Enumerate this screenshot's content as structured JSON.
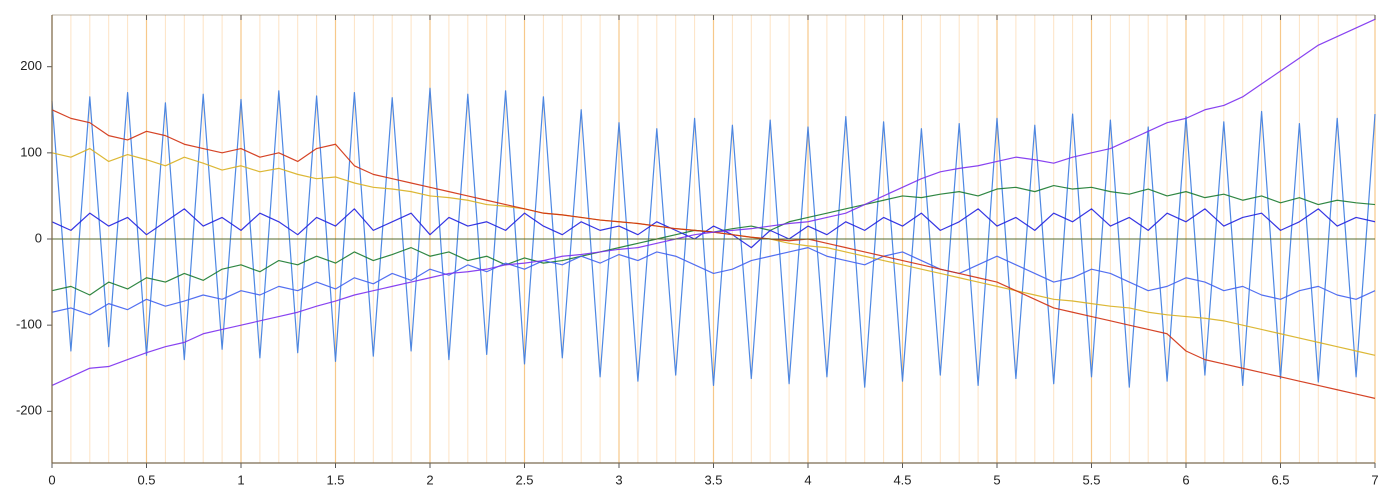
{
  "chart_data": {
    "type": "line",
    "x": [
      0,
      0.1,
      0.2,
      0.3,
      0.4,
      0.5,
      0.6,
      0.7,
      0.8,
      0.9,
      1,
      1.1,
      1.2,
      1.3,
      1.4,
      1.5,
      1.6,
      1.7,
      1.8,
      1.9,
      2,
      2.1,
      2.2,
      2.3,
      2.4,
      2.5,
      2.6,
      2.7,
      2.8,
      2.9,
      3,
      3.1,
      3.2,
      3.3,
      3.4,
      3.5,
      3.6,
      3.7,
      3.8,
      3.9,
      4,
      4.1,
      4.2,
      4.3,
      4.4,
      4.5,
      4.6,
      4.7,
      4.8,
      4.9,
      5,
      5.1,
      5.2,
      5.3,
      5.4,
      5.5,
      5.6,
      5.7,
      5.8,
      5.9,
      6,
      6.1,
      6.2,
      6.3,
      6.4,
      6.5,
      6.6,
      6.7,
      6.8,
      6.9,
      7
    ],
    "series": [
      {
        "color": "#3b7be0",
        "values": [
          160,
          -130,
          165,
          -125,
          170,
          -135,
          158,
          -140,
          168,
          -128,
          162,
          -138,
          172,
          -132,
          166,
          -142,
          170,
          -136,
          164,
          -130,
          175,
          -140,
          168,
          -134,
          172,
          -145,
          165,
          -138,
          150,
          -160,
          135,
          -165,
          128,
          -158,
          140,
          -170,
          132,
          -162,
          138,
          -168,
          130,
          -160,
          142,
          -172,
          136,
          -165,
          128,
          -158,
          134,
          -170,
          140,
          -162,
          132,
          -168,
          145,
          -160,
          138,
          -172,
          130,
          -165,
          142,
          -158,
          136,
          -170,
          148,
          -162,
          134,
          -166,
          140,
          -160,
          145
        ]
      },
      {
        "color": "#d8b020",
        "values": [
          100,
          95,
          105,
          90,
          98,
          92,
          85,
          95,
          88,
          80,
          85,
          78,
          82,
          75,
          70,
          72,
          65,
          60,
          58,
          55,
          50,
          48,
          45,
          40,
          38,
          35,
          30,
          28,
          25,
          22,
          20,
          18,
          15,
          12,
          10,
          8,
          5,
          2,
          0,
          -5,
          -8,
          -10,
          -15,
          -20,
          -25,
          -30,
          -35,
          -40,
          -45,
          -50,
          -55,
          -60,
          -65,
          -70,
          -72,
          -75,
          -78,
          -80,
          -85,
          -88,
          -90,
          -92,
          -95,
          -100,
          -105,
          -110,
          -115,
          -120,
          -125,
          -130,
          -135
        ]
      },
      {
        "color": "#1a7a30",
        "values": [
          -60,
          -55,
          -65,
          -50,
          -58,
          -45,
          -50,
          -40,
          -48,
          -35,
          -30,
          -38,
          -25,
          -30,
          -20,
          -28,
          -15,
          -25,
          -18,
          -10,
          -20,
          -15,
          -25,
          -20,
          -30,
          -22,
          -28,
          -25,
          -20,
          -15,
          -10,
          -5,
          0,
          5,
          10,
          8,
          12,
          15,
          10,
          20,
          25,
          30,
          35,
          40,
          45,
          50,
          48,
          52,
          55,
          50,
          58,
          60,
          55,
          62,
          58,
          60,
          55,
          52,
          58,
          50,
          55,
          48,
          52,
          45,
          50,
          42,
          48,
          40,
          45,
          42,
          40
        ]
      },
      {
        "color": "#4060f0",
        "values": [
          -85,
          -80,
          -88,
          -75,
          -82,
          -70,
          -78,
          -72,
          -65,
          -70,
          -60,
          -65,
          -55,
          -60,
          -50,
          -58,
          -45,
          -52,
          -40,
          -48,
          -35,
          -42,
          -30,
          -38,
          -28,
          -35,
          -25,
          -30,
          -20,
          -28,
          -18,
          -25,
          -15,
          -20,
          -30,
          -40,
          -35,
          -25,
          -20,
          -15,
          -10,
          -20,
          -25,
          -30,
          -20,
          -15,
          -25,
          -35,
          -40,
          -30,
          -20,
          -30,
          -40,
          -50,
          -45,
          -35,
          -40,
          -50,
          -60,
          -55,
          -45,
          -50,
          -60,
          -55,
          -65,
          -70,
          -60,
          -55,
          -65,
          -70,
          -60
        ]
      },
      {
        "color": "#2020e0",
        "values": [
          20,
          10,
          30,
          15,
          25,
          5,
          20,
          35,
          15,
          25,
          10,
          30,
          20,
          5,
          25,
          15,
          35,
          10,
          20,
          30,
          5,
          25,
          15,
          20,
          10,
          30,
          15,
          5,
          20,
          10,
          15,
          5,
          20,
          10,
          0,
          15,
          5,
          -10,
          10,
          0,
          15,
          5,
          20,
          10,
          25,
          15,
          30,
          10,
          20,
          35,
          15,
          25,
          10,
          30,
          20,
          35,
          15,
          25,
          10,
          30,
          20,
          35,
          15,
          25,
          30,
          10,
          20,
          35,
          15,
          25,
          20
        ]
      },
      {
        "color": "#d03010",
        "values": [
          150,
          140,
          135,
          120,
          115,
          125,
          120,
          110,
          105,
          100,
          105,
          95,
          100,
          90,
          105,
          110,
          85,
          75,
          70,
          65,
          60,
          55,
          50,
          45,
          40,
          35,
          30,
          28,
          25,
          22,
          20,
          18,
          15,
          12,
          10,
          8,
          5,
          2,
          0,
          -2,
          0,
          -5,
          -10,
          -15,
          -20,
          -25,
          -30,
          -35,
          -40,
          -45,
          -50,
          -60,
          -70,
          -80,
          -85,
          -90,
          -95,
          -100,
          -105,
          -110,
          -130,
          -140,
          -145,
          -150,
          -155,
          -160,
          -165,
          -170,
          -175,
          -180,
          -185
        ]
      },
      {
        "color": "#7b2ff0",
        "values": [
          -170,
          -160,
          -150,
          -148,
          -140,
          -132,
          -125,
          -120,
          -110,
          -105,
          -100,
          -95,
          -90,
          -85,
          -78,
          -72,
          -65,
          -60,
          -55,
          -50,
          -45,
          -40,
          -38,
          -35,
          -30,
          -28,
          -25,
          -20,
          -18,
          -15,
          -12,
          -10,
          -5,
          0,
          5,
          8,
          10,
          12,
          15,
          18,
          20,
          25,
          30,
          40,
          50,
          60,
          70,
          78,
          82,
          85,
          90,
          95,
          92,
          88,
          95,
          100,
          105,
          115,
          125,
          135,
          140,
          150,
          155,
          165,
          180,
          195,
          210,
          225,
          235,
          245,
          255
        ]
      }
    ],
    "xlim": [
      0,
      7
    ],
    "xticks": [
      0,
      0.5,
      1,
      1.5,
      2,
      2.5,
      3,
      3.5,
      4,
      4.5,
      5,
      5.5,
      6,
      6.5,
      7
    ],
    "ylim": [
      -260,
      260
    ],
    "yticks": [
      -200,
      -100,
      0,
      100,
      200
    ],
    "grid": true,
    "zero_line": true
  }
}
